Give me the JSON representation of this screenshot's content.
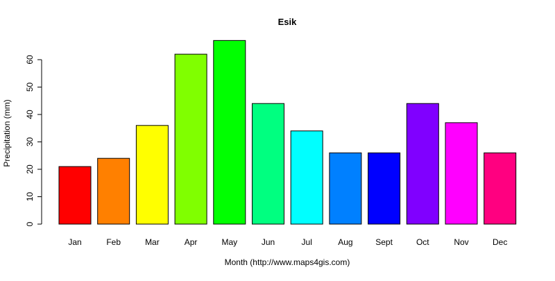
{
  "chart_data": {
    "type": "bar",
    "title": "Esik",
    "xlabel": "Month (http://www.maps4gis.com)",
    "ylabel": "Precipitation (mm)",
    "categories": [
      "Jan",
      "Feb",
      "Mar",
      "Apr",
      "May",
      "Jun",
      "Jul",
      "Aug",
      "Sept",
      "Oct",
      "Nov",
      "Dec"
    ],
    "values": [
      21,
      24,
      36,
      62,
      67,
      44,
      34,
      26,
      26,
      44,
      37,
      26
    ],
    "colors": [
      "#FF0000",
      "#FF8000",
      "#FFFF00",
      "#80FF00",
      "#00FF00",
      "#00FF80",
      "#00FFFF",
      "#0080FF",
      "#0000FF",
      "#8000FF",
      "#FF00FF",
      "#FF0080"
    ],
    "yticks": [
      0,
      10,
      20,
      30,
      40,
      50,
      60
    ],
    "ylim": [
      0,
      67
    ],
    "grid": false,
    "legend": "none"
  }
}
